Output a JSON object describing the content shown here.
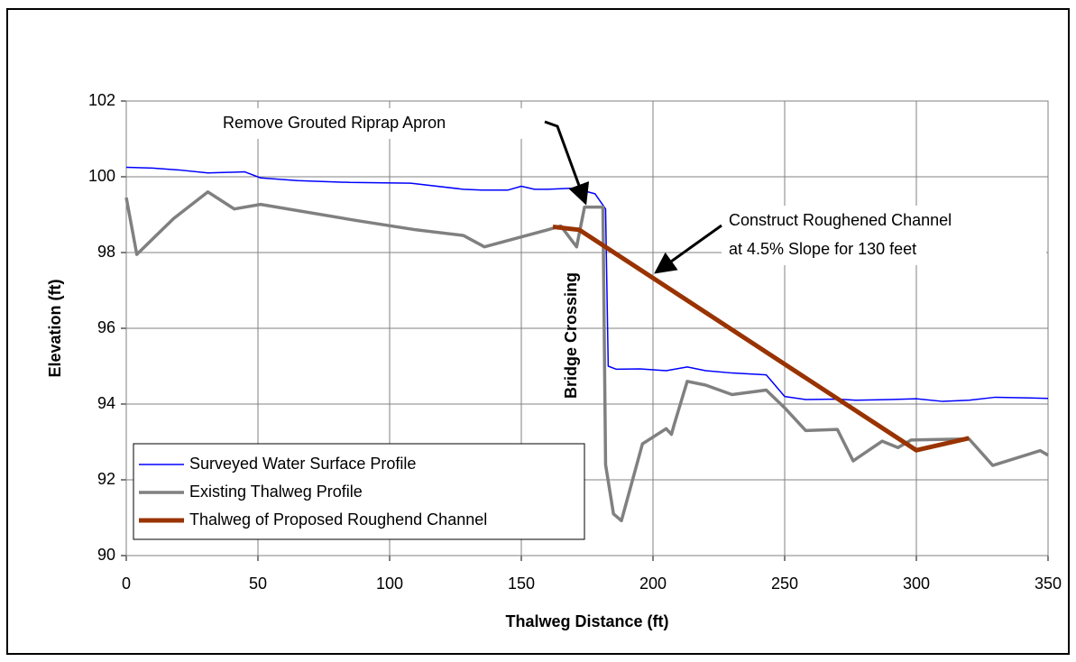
{
  "chart_data": {
    "type": "line",
    "x_label": "Thalweg Distance (ft)",
    "y_label": "Elevation (ft)",
    "xlim": [
      0,
      350
    ],
    "xticks": [
      0,
      50,
      100,
      150,
      200,
      250,
      300,
      350
    ],
    "ylim": [
      90,
      102
    ],
    "yticks": [
      90,
      92,
      94,
      96,
      98,
      100,
      102
    ],
    "grid": true,
    "legend": "lower left",
    "annotations": [
      "Remove Grouted Riprap Apron",
      "Construct Roughened Channel",
      "at 4.5% Slope for 130 feet",
      "Bridge Crossing"
    ],
    "series": [
      {
        "name": "Surveyed Water Surface Profile",
        "color": "#0000ff",
        "x": [
          0,
          10,
          20,
          31,
          45,
          51,
          65,
          85,
          108,
          128,
          135,
          145,
          150,
          155,
          160,
          170,
          178,
          182,
          183,
          186,
          195,
          205,
          213,
          220,
          230,
          243,
          250,
          258,
          270,
          277,
          290,
          300,
          310,
          320,
          330,
          350
        ],
        "y": [
          100.25,
          100.23,
          100.18,
          100.1,
          100.13,
          99.97,
          99.9,
          99.85,
          99.83,
          99.67,
          99.65,
          99.65,
          99.75,
          99.67,
          99.67,
          99.7,
          99.55,
          99.15,
          95.0,
          94.92,
          94.93,
          94.88,
          94.98,
          94.88,
          94.82,
          94.77,
          94.2,
          94.12,
          94.13,
          94.1,
          94.12,
          94.14,
          94.07,
          94.1,
          94.18,
          94.15
        ]
      },
      {
        "name": "Existing Thalweg Profile",
        "color": "#808080",
        "x": [
          0,
          4,
          18,
          31,
          41,
          51,
          87,
          110,
          128,
          136,
          160,
          165,
          171,
          174,
          181,
          182,
          185,
          188,
          196,
          205,
          207,
          208,
          213,
          220,
          230,
          243,
          250,
          258,
          270,
          276,
          287,
          293,
          298,
          320,
          329,
          347,
          350
        ],
        "y": [
          99.45,
          97.95,
          98.9,
          99.6,
          99.15,
          99.27,
          98.85,
          98.6,
          98.45,
          98.15,
          98.6,
          98.7,
          98.15,
          99.2,
          99.2,
          92.4,
          91.1,
          90.92,
          92.95,
          93.35,
          93.2,
          93.45,
          94.6,
          94.5,
          94.25,
          94.37,
          93.9,
          93.3,
          93.33,
          92.5,
          93.02,
          92.85,
          93.05,
          93.08,
          92.38,
          92.77,
          92.65
        ]
      },
      {
        "name": "Thalweg of Proposed Roughend Channel",
        "color": "#993300",
        "x": [
          162,
          172,
          300,
          320
        ],
        "y": [
          98.68,
          98.6,
          92.78,
          93.1
        ]
      }
    ]
  }
}
